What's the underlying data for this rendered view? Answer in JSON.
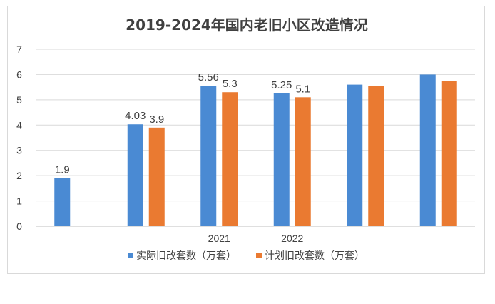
{
  "chart_data": {
    "type": "bar",
    "title": "2019-2024年国内老旧小区改造情况",
    "categories": [
      "",
      "",
      "2021",
      "2022",
      "",
      ""
    ],
    "series": [
      {
        "name": "实际旧改套数（万套）",
        "color": "#4a8ad3",
        "values": [
          1.9,
          4.03,
          5.56,
          5.25,
          5.6,
          6.0
        ]
      },
      {
        "name": "计划旧改套数（万套）",
        "color": "#ea7a31",
        "values": [
          null,
          3.9,
          5.3,
          5.1,
          5.55,
          5.75
        ]
      }
    ],
    "data_labels": [
      [
        "1.9",
        "4.03",
        "5.56",
        "5.25",
        null,
        null
      ],
      [
        null,
        "3.9",
        "5.3",
        "5.1",
        null,
        null
      ]
    ],
    "ylim": [
      0,
      7
    ],
    "yticks": [
      "0",
      "1",
      "2",
      "3",
      "4",
      "5",
      "6",
      "7"
    ],
    "grid": true,
    "legend_position": "bottom"
  }
}
